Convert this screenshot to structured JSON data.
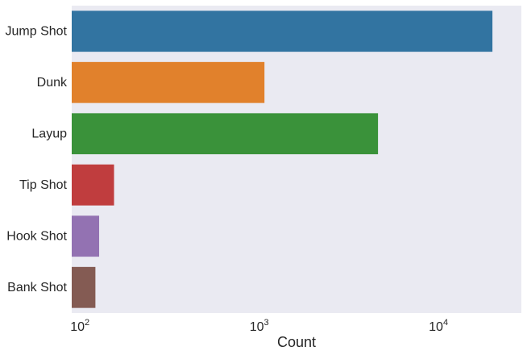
{
  "chart_data": {
    "type": "bar",
    "orientation": "horizontal",
    "x_scale": "log",
    "xlabel": "Count",
    "ylabel": "",
    "title": "",
    "xlim": [
      90,
      29000
    ],
    "x_ticks": [
      {
        "value": 100,
        "base": "10",
        "exp": "2"
      },
      {
        "value": 1000,
        "base": "10",
        "exp": "3"
      },
      {
        "value": 10000,
        "base": "10",
        "exp": "4"
      }
    ],
    "grid": false,
    "categories": [
      "Jump Shot",
      "Dunk",
      "Layup",
      "Tip Shot",
      "Hook Shot",
      "Bank Shot"
    ],
    "values": [
      20000,
      1070,
      4600,
      155,
      128,
      122
    ],
    "colors": [
      "#3274a1",
      "#e1812c",
      "#3a923a",
      "#c03d3e",
      "#9372b2",
      "#845b53"
    ],
    "background": "#eaeaf2"
  }
}
